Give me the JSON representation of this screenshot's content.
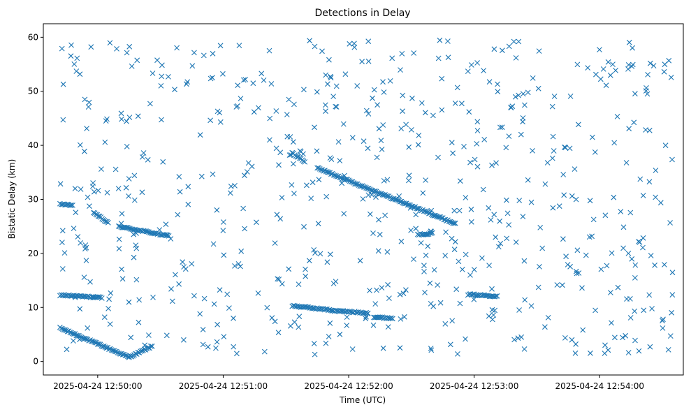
{
  "chart_data": {
    "type": "scatter",
    "title": "Detections in Delay",
    "xlabel": "Time (UTC)",
    "ylabel": "Bistatic Delay (km)",
    "marker": "x",
    "color": "#1f77b4",
    "grid": false,
    "legend": "none",
    "xlim": [
      "2025-04-24 12:49:34",
      "2025-04-24 12:54:40"
    ],
    "ylim": [
      -2.5,
      62.5
    ],
    "xticks": [
      "2025-04-24 12:50:00",
      "2025-04-24 12:51:00",
      "2025-04-24 12:52:00",
      "2025-04-24 12:53:00",
      "2025-04-24 12:54:00"
    ],
    "yticks": [
      0,
      10,
      20,
      30,
      40,
      50,
      60
    ],
    "series": [
      {
        "name": "",
        "tracks": [
          {
            "t": [
              "2025-04-24 12:49:42",
              "2025-04-24 12:50:15"
            ],
            "delay": [
              6.2,
              0.8
            ],
            "spacing_s": 0.6
          },
          {
            "t": [
              "2025-04-24 12:50:15",
              "2025-04-24 12:50:26"
            ],
            "delay": [
              0.8,
              2.8
            ],
            "spacing_s": 0.6
          },
          {
            "t": [
              "2025-04-24 12:49:42",
              "2025-04-24 12:49:48"
            ],
            "delay": [
              29.2,
              28.8
            ],
            "spacing_s": 0.6
          },
          {
            "t": [
              "2025-04-24 12:49:58",
              "2025-04-24 12:50:05"
            ],
            "delay": [
              27.6,
              25.6
            ],
            "spacing_s": 0.6
          },
          {
            "t": [
              "2025-04-24 12:50:10",
              "2025-04-24 12:50:34"
            ],
            "delay": [
              25.0,
              23.2
            ],
            "spacing_s": 0.6
          },
          {
            "t": [
              "2025-04-24 12:49:42",
              "2025-04-24 12:50:02"
            ],
            "delay": [
              12.3,
              11.8
            ],
            "spacing_s": 0.6
          },
          {
            "t": [
              "2025-04-24 12:51:33",
              "2025-04-24 12:51:39"
            ],
            "delay": [
              38.6,
              37.0
            ],
            "spacing_s": 0.6
          },
          {
            "t": [
              "2025-04-24 12:51:45",
              "2025-04-24 12:52:51"
            ],
            "delay": [
              35.8,
              25.5
            ],
            "spacing_s": 0.6
          },
          {
            "t": [
              "2025-04-24 12:51:33",
              "2025-04-24 12:51:52"
            ],
            "delay": [
              10.3,
              9.5
            ],
            "spacing_s": 0.6
          },
          {
            "t": [
              "2025-04-24 12:51:52",
              "2025-04-24 12:52:09"
            ],
            "delay": [
              9.4,
              9.0
            ],
            "spacing_s": 0.6
          },
          {
            "t": [
              "2025-04-24 12:52:12",
              "2025-04-24 12:52:21"
            ],
            "delay": [
              8.2,
              8.0
            ],
            "spacing_s": 0.6
          },
          {
            "t": [
              "2025-04-24 12:52:33",
              "2025-04-24 12:52:40"
            ],
            "delay": [
              23.5,
              23.7
            ],
            "spacing_s": 0.6
          },
          {
            "t": [
              "2025-04-24 12:52:57",
              "2025-04-24 12:53:11"
            ],
            "delay": [
              12.4,
              12.1
            ],
            "spacing_s": 0.6
          }
        ],
        "clutter": {
          "count": 640,
          "t_range": [
            "2025-04-24 12:49:42",
            "2025-04-24 12:54:35"
          ],
          "delay_range": [
            1,
            59.5
          ],
          "distribution": "uniform"
        }
      }
    ]
  }
}
